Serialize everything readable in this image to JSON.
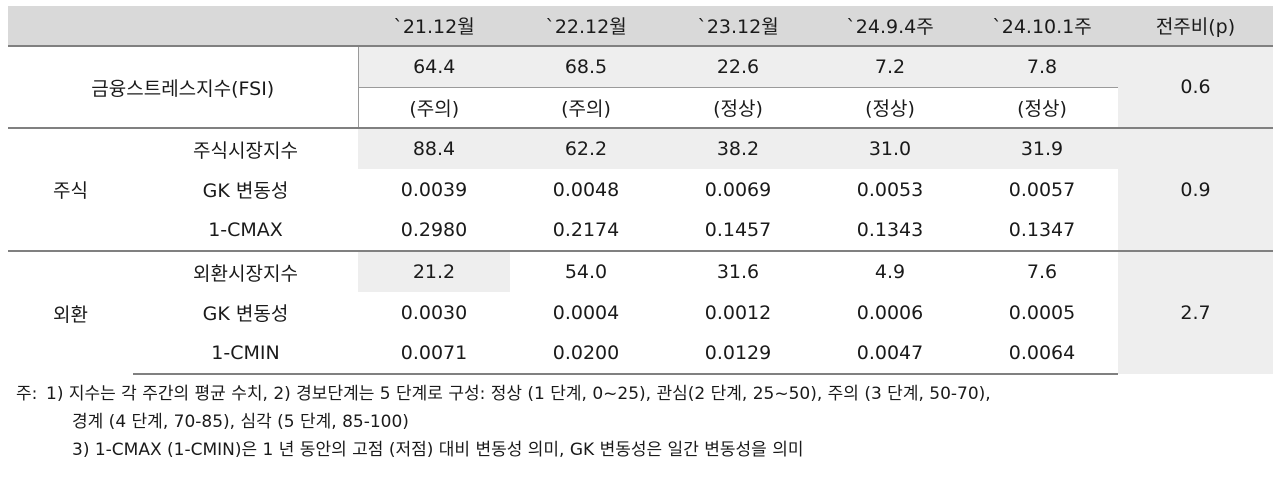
{
  "columns": [
    "",
    "",
    "`21.12월",
    "`22.12월",
    "`23.12월",
    "`24.9.4주",
    "`24.10.1주",
    "전주비(p)"
  ],
  "fsi": {
    "label": "금융스트레스지수(FSI)",
    "values": [
      "64.4",
      "68.5",
      "22.6",
      "7.2",
      "7.8"
    ],
    "status": [
      "(주의)",
      "(주의)",
      "(정상)",
      "(정상)",
      "(정상)"
    ],
    "change": "0.6"
  },
  "groups": [
    {
      "label": "주식",
      "change": "0.9",
      "rows": [
        {
          "label": "주식시장지수",
          "values": [
            "88.4",
            "62.2",
            "38.2",
            "31.0",
            "31.9"
          ]
        },
        {
          "label": "GK 변동성",
          "values": [
            "0.0039",
            "0.0048",
            "0.0069",
            "0.0053",
            "0.0057"
          ]
        },
        {
          "label": "1-CMAX",
          "values": [
            "0.2980",
            "0.2174",
            "0.1457",
            "0.1343",
            "0.1347"
          ]
        }
      ]
    },
    {
      "label": "외환",
      "change": "2.7",
      "rows": [
        {
          "label": "외환시장지수",
          "values": [
            "21.2",
            "54.0",
            "31.6",
            "4.9",
            "7.6"
          ]
        },
        {
          "label": "GK 변동성",
          "values": [
            "0.0030",
            "0.0004",
            "0.0012",
            "0.0006",
            "0.0005"
          ]
        },
        {
          "label": "1-CMIN",
          "values": [
            "0.0071",
            "0.0200",
            "0.0129",
            "0.0047",
            "0.0064"
          ]
        }
      ]
    }
  ],
  "notes": {
    "prefix": "주:",
    "line1": "1) 지수는 각 주간의 평균 수치, 2) 경보단계는 5 단계로 구성: 정상 (1 단계, 0~25), 관심(2 단계, 25~50), 주의 (3 단계, 50-70),",
    "line2": "경계 (4 단계, 70-85), 심각 (5 단계, 85-100)",
    "line3": "3) 1-CMAX (1-CMIN)은 1 년 동안의 고점 (저점) 대비 변동성 의미, GK 변동성은 일간 변동성을 의미"
  }
}
